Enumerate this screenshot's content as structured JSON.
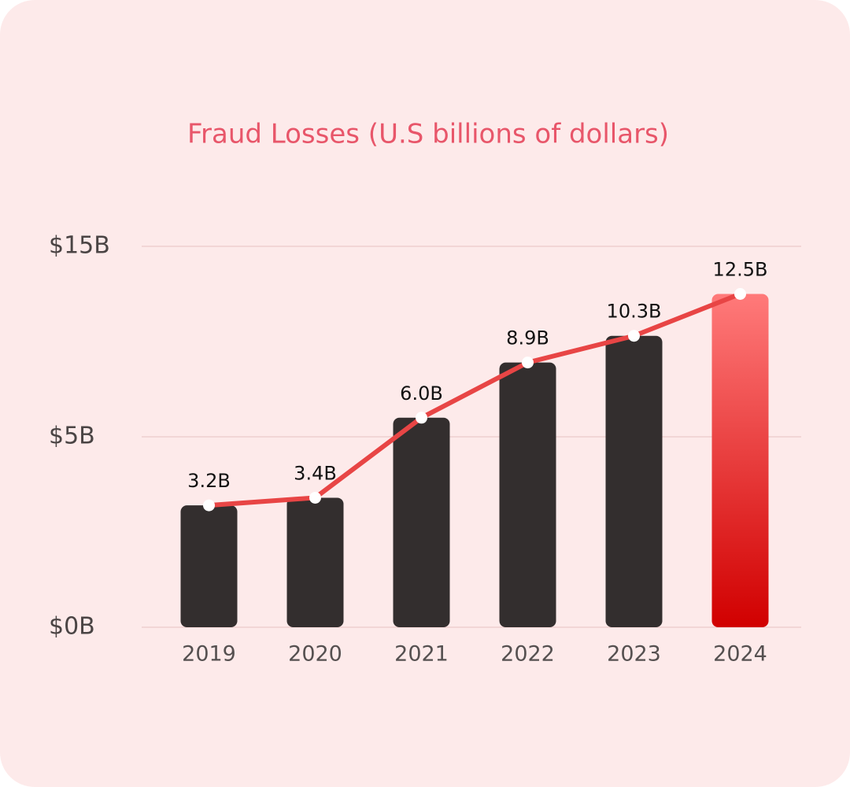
{
  "chart_data": {
    "type": "bar",
    "title": "Fraud Losses (U.S billions of dollars)",
    "categories": [
      "2019",
      "2020",
      "2021",
      "2022",
      "2023",
      "2024"
    ],
    "values": [
      3.2,
      3.4,
      6.0,
      8.9,
      10.3,
      12.5
    ],
    "value_labels": [
      "3.2B",
      "3.4B",
      "6.0B",
      "8.9B",
      "10.3B",
      "12.5B"
    ],
    "colors": [
      "#332e2e",
      "#332e2e",
      "#332e2e",
      "#332e2e",
      "#332e2e",
      "#d10000"
    ],
    "line_color": "#e84545",
    "ylim": [
      0,
      15
    ],
    "yticks": [
      {
        "value": 0,
        "label": "$0B"
      },
      {
        "value": 5,
        "label": "$5B"
      },
      {
        "value": 15,
        "label": "$15B"
      }
    ],
    "grid": true
  }
}
